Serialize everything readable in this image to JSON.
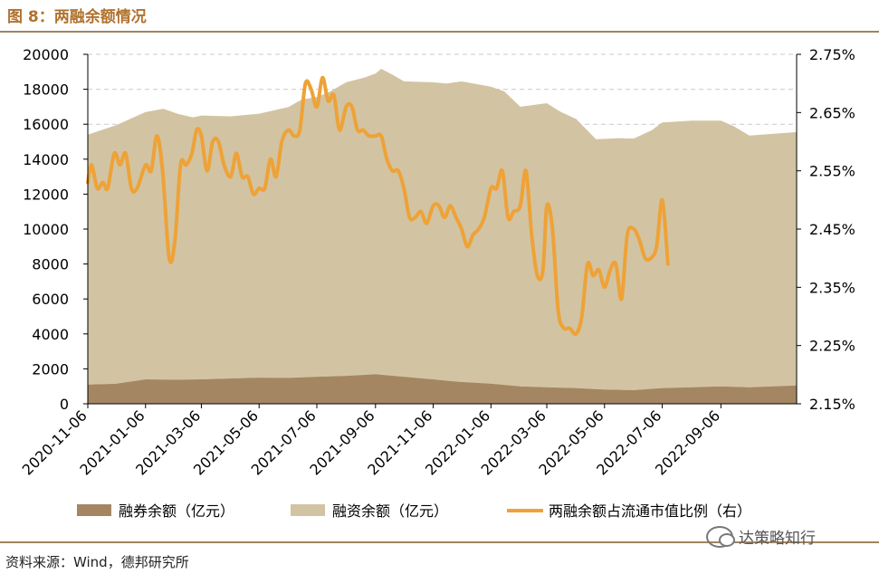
{
  "figure": {
    "title": "图 8：两融余额情况",
    "source": "资料来源：Wind，德邦研究所",
    "watermark": "达策略知行"
  },
  "colors": {
    "short_balance": "#a48762",
    "margin_balance": "#d2c4a2",
    "ratio_line": "#eea237",
    "title": "#b0722e",
    "rule": "#a08560"
  },
  "chart_data": {
    "type": "area",
    "x_ticks": [
      "2020-11-06",
      "2021-01-06",
      "2021-03-06",
      "2021-05-06",
      "2021-07-06",
      "2021-09-06",
      "2021-11-06",
      "2022-01-06",
      "2022-03-06",
      "2022-05-06",
      "2022-07-06",
      "2022-09-06"
    ],
    "x_range": [
      "2020-11-06",
      "2022-11-25"
    ],
    "y_left": {
      "min": 0,
      "max": 20000,
      "ticks": [
        "0",
        "2000",
        "4000",
        "6000",
        "8000",
        "10000",
        "12000",
        "14000",
        "16000",
        "18000",
        "20000"
      ]
    },
    "y_right": {
      "min": 2.15,
      "max": 2.75,
      "ticks": [
        "2.15%",
        "2.25%",
        "2.35%",
        "2.45%",
        "2.55%",
        "2.65%",
        "2.75%"
      ]
    },
    "grid": "horizontal dashed",
    "legend_position": "bottom",
    "series": [
      {
        "name": "融券余额（亿元）",
        "kind": "area-stacked",
        "axis": "left",
        "points": [
          [
            "2020-11-06",
            1100
          ],
          [
            "2020-12-06",
            1150
          ],
          [
            "2021-01-06",
            1400
          ],
          [
            "2021-02-06",
            1380
          ],
          [
            "2021-03-06",
            1400
          ],
          [
            "2021-04-06",
            1450
          ],
          [
            "2021-05-06",
            1500
          ],
          [
            "2021-06-06",
            1480
          ],
          [
            "2021-07-06",
            1550
          ],
          [
            "2021-08-06",
            1600
          ],
          [
            "2021-09-06",
            1700
          ],
          [
            "2021-10-06",
            1550
          ],
          [
            "2021-11-06",
            1400
          ],
          [
            "2021-12-06",
            1250
          ],
          [
            "2022-01-06",
            1150
          ],
          [
            "2022-02-06",
            1000
          ],
          [
            "2022-03-06",
            950
          ],
          [
            "2022-04-06",
            900
          ],
          [
            "2022-05-06",
            820
          ],
          [
            "2022-06-06",
            780
          ],
          [
            "2022-07-06",
            900
          ],
          [
            "2022-08-06",
            950
          ],
          [
            "2022-09-06",
            1000
          ],
          [
            "2022-10-06",
            950
          ],
          [
            "2022-11-25",
            1050
          ]
        ]
      },
      {
        "name": "融资余额（亿元）",
        "kind": "area-stacked",
        "axis": "left",
        "points": [
          [
            "2020-11-06",
            14300
          ],
          [
            "2020-12-06",
            14800
          ],
          [
            "2021-01-06",
            15300
          ],
          [
            "2021-01-25",
            15500
          ],
          [
            "2021-02-10",
            15200
          ],
          [
            "2021-02-25",
            15000
          ],
          [
            "2021-03-06",
            15100
          ],
          [
            "2021-04-06",
            15000
          ],
          [
            "2021-05-06",
            15100
          ],
          [
            "2021-06-06",
            15500
          ],
          [
            "2021-06-20",
            15900
          ],
          [
            "2021-07-06",
            16000
          ],
          [
            "2021-07-20",
            16300
          ],
          [
            "2021-08-06",
            16800
          ],
          [
            "2021-08-25",
            17000
          ],
          [
            "2021-09-06",
            17200
          ],
          [
            "2021-09-12",
            17500
          ],
          [
            "2021-09-25",
            17200
          ],
          [
            "2021-10-06",
            16900
          ],
          [
            "2021-11-06",
            17000
          ],
          [
            "2021-11-20",
            17000
          ],
          [
            "2021-12-06",
            17200
          ],
          [
            "2022-01-06",
            17000
          ],
          [
            "2022-01-20",
            16800
          ],
          [
            "2022-02-06",
            16000
          ],
          [
            "2022-03-06",
            16250
          ],
          [
            "2022-03-20",
            15800
          ],
          [
            "2022-04-06",
            15400
          ],
          [
            "2022-04-27",
            14300
          ],
          [
            "2022-05-20",
            14400
          ],
          [
            "2022-06-06",
            14400
          ],
          [
            "2022-06-25",
            14800
          ],
          [
            "2022-07-06",
            15200
          ],
          [
            "2022-08-06",
            15250
          ],
          [
            "2022-09-06",
            15200
          ],
          [
            "2022-09-20",
            14900
          ],
          [
            "2022-10-06",
            14400
          ],
          [
            "2022-11-25",
            14500
          ]
        ]
      },
      {
        "name": "两融余额占流通市值比例（右）",
        "kind": "line",
        "axis": "right",
        "points": [
          [
            "2020-11-06",
            2.53
          ],
          [
            "2020-11-10",
            2.56
          ],
          [
            "2020-11-16",
            2.52
          ],
          [
            "2020-11-22",
            2.53
          ],
          [
            "2020-11-27",
            2.52
          ],
          [
            "2020-12-04",
            2.58
          ],
          [
            "2020-12-10",
            2.56
          ],
          [
            "2020-12-16",
            2.58
          ],
          [
            "2020-12-22",
            2.52
          ],
          [
            "2020-12-28",
            2.52
          ],
          [
            "2021-01-06",
            2.56
          ],
          [
            "2021-01-12",
            2.55
          ],
          [
            "2021-01-18",
            2.61
          ],
          [
            "2021-01-24",
            2.55
          ],
          [
            "2021-01-31",
            2.4
          ],
          [
            "2021-02-06",
            2.43
          ],
          [
            "2021-02-12",
            2.56
          ],
          [
            "2021-02-18",
            2.56
          ],
          [
            "2021-02-24",
            2.58
          ],
          [
            "2021-03-01",
            2.62
          ],
          [
            "2021-03-06",
            2.61
          ],
          [
            "2021-03-12",
            2.55
          ],
          [
            "2021-03-18",
            2.6
          ],
          [
            "2021-03-24",
            2.6
          ],
          [
            "2021-03-30",
            2.56
          ],
          [
            "2021-04-06",
            2.54
          ],
          [
            "2021-04-12",
            2.58
          ],
          [
            "2021-04-18",
            2.54
          ],
          [
            "2021-04-24",
            2.54
          ],
          [
            "2021-04-30",
            2.51
          ],
          [
            "2021-05-06",
            2.52
          ],
          [
            "2021-05-12",
            2.52
          ],
          [
            "2021-05-18",
            2.57
          ],
          [
            "2021-05-24",
            2.54
          ],
          [
            "2021-05-30",
            2.6
          ],
          [
            "2021-06-06",
            2.62
          ],
          [
            "2021-06-12",
            2.61
          ],
          [
            "2021-06-18",
            2.62
          ],
          [
            "2021-06-24",
            2.7
          ],
          [
            "2021-06-30",
            2.69
          ],
          [
            "2021-07-06",
            2.66
          ],
          [
            "2021-07-12",
            2.71
          ],
          [
            "2021-07-18",
            2.67
          ],
          [
            "2021-07-24",
            2.68
          ],
          [
            "2021-07-30",
            2.62
          ],
          [
            "2021-08-06",
            2.66
          ],
          [
            "2021-08-12",
            2.66
          ],
          [
            "2021-08-18",
            2.62
          ],
          [
            "2021-08-24",
            2.62
          ],
          [
            "2021-08-30",
            2.61
          ],
          [
            "2021-09-06",
            2.61
          ],
          [
            "2021-09-12",
            2.61
          ],
          [
            "2021-09-18",
            2.57
          ],
          [
            "2021-09-24",
            2.55
          ],
          [
            "2021-09-30",
            2.55
          ],
          [
            "2021-10-06",
            2.52
          ],
          [
            "2021-10-12",
            2.47
          ],
          [
            "2021-10-18",
            2.47
          ],
          [
            "2021-10-24",
            2.48
          ],
          [
            "2021-10-30",
            2.46
          ],
          [
            "2021-11-06",
            2.49
          ],
          [
            "2021-11-12",
            2.49
          ],
          [
            "2021-11-18",
            2.47
          ],
          [
            "2021-11-24",
            2.49
          ],
          [
            "2021-11-30",
            2.47
          ],
          [
            "2021-12-06",
            2.45
          ],
          [
            "2021-12-12",
            2.42
          ],
          [
            "2021-12-18",
            2.44
          ],
          [
            "2021-12-24",
            2.45
          ],
          [
            "2021-12-30",
            2.47
          ],
          [
            "2022-01-06",
            2.52
          ],
          [
            "2022-01-12",
            2.52
          ],
          [
            "2022-01-18",
            2.55
          ],
          [
            "2022-01-24",
            2.47
          ],
          [
            "2022-01-30",
            2.48
          ],
          [
            "2022-02-06",
            2.49
          ],
          [
            "2022-02-12",
            2.55
          ],
          [
            "2022-02-18",
            2.44
          ],
          [
            "2022-02-24",
            2.37
          ],
          [
            "2022-03-02",
            2.38
          ],
          [
            "2022-03-06",
            2.49
          ],
          [
            "2022-03-12",
            2.45
          ],
          [
            "2022-03-18",
            2.31
          ],
          [
            "2022-03-24",
            2.28
          ],
          [
            "2022-03-30",
            2.28
          ],
          [
            "2022-04-06",
            2.27
          ],
          [
            "2022-04-12",
            2.3
          ],
          [
            "2022-04-18",
            2.39
          ],
          [
            "2022-04-24",
            2.37
          ],
          [
            "2022-04-30",
            2.38
          ],
          [
            "2022-05-06",
            2.35
          ],
          [
            "2022-05-12",
            2.38
          ],
          [
            "2022-05-18",
            2.39
          ],
          [
            "2022-05-24",
            2.33
          ],
          [
            "2022-05-30",
            2.44
          ],
          [
            "2022-06-06",
            2.45
          ],
          [
            "2022-06-12",
            2.43
          ],
          [
            "2022-06-18",
            2.4
          ],
          [
            "2022-06-24",
            2.4
          ],
          [
            "2022-06-30",
            2.42
          ],
          [
            "2022-07-06",
            2.5
          ],
          [
            "2022-07-12",
            2.39
          ]
        ]
      }
    ]
  }
}
